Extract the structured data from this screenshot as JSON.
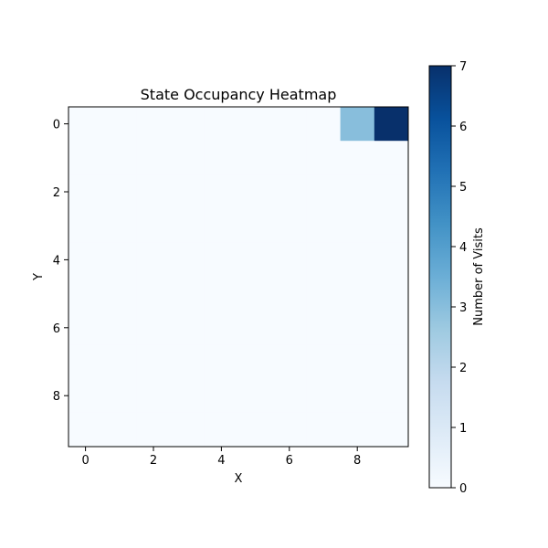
{
  "chart_data": {
    "type": "heatmap",
    "title": "State Occupancy Heatmap",
    "xlabel": "X",
    "ylabel": "Y",
    "rows": 10,
    "cols": 10,
    "x_ticks": [
      0,
      2,
      4,
      6,
      8
    ],
    "y_ticks": [
      0,
      2,
      4,
      6,
      8
    ],
    "values": [
      [
        0,
        0,
        0,
        0,
        0,
        0,
        0,
        0,
        3,
        7
      ],
      [
        0,
        0,
        0,
        0,
        0,
        0,
        0,
        0,
        0,
        0
      ],
      [
        0,
        0,
        0,
        0,
        0,
        0,
        0,
        0,
        0,
        0
      ],
      [
        0,
        0,
        0,
        0,
        0,
        0,
        0,
        0,
        0,
        0
      ],
      [
        0,
        0,
        0,
        0,
        0,
        0,
        0,
        0,
        0,
        0
      ],
      [
        0,
        0,
        0,
        0,
        0,
        0,
        0,
        0,
        0,
        0
      ],
      [
        0,
        0,
        0,
        0,
        0,
        0,
        0,
        0,
        0,
        0
      ],
      [
        0,
        0,
        0,
        0,
        0,
        0,
        0,
        0,
        0,
        0
      ],
      [
        0,
        0,
        0,
        0,
        0,
        0,
        0,
        0,
        0,
        0
      ],
      [
        0,
        0,
        0,
        0,
        0,
        0,
        0,
        0,
        0,
        0
      ]
    ],
    "colormap": "Blues",
    "colorbar": {
      "label": "Number of Visits",
      "min": 0,
      "max": 7,
      "ticks": [
        0,
        1,
        2,
        3,
        4,
        5,
        6,
        7
      ]
    },
    "grid": false
  }
}
